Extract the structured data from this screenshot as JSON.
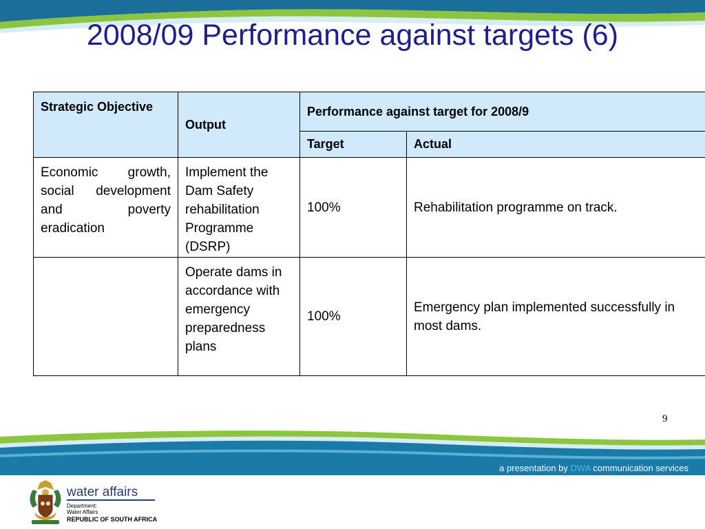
{
  "slide": {
    "title": "2008/09 Performance against targets (6)",
    "page_number": "9"
  },
  "table": {
    "headers": {
      "strategic_objective": "Strategic Objective",
      "output": "Output",
      "performance": "Performance against target for 2008/9",
      "target": "Target",
      "actual": "Actual"
    },
    "rows": [
      {
        "objective": "Economic growth, social development and poverty eradication",
        "output": "Implement the Dam Safety rehabilitation Programme (DSRP)",
        "target": "100%",
        "actual": "Rehabilitation programme on track."
      },
      {
        "objective": "",
        "output": "Operate dams in accordance with emergency preparedness plans",
        "target": "100%",
        "actual": "Emergency plan implemented successfully in most dams."
      }
    ]
  },
  "footer": {
    "presentation_prefix": "a presentation by ",
    "presentation_brand": "DWA",
    "presentation_suffix": " communication services",
    "logo_name": "water affairs",
    "department_line1": "Department:",
    "department_line2": "Water Affairs",
    "country": "REPUBLIC OF SOUTH AFRICA"
  },
  "colors": {
    "title": "#1e1e8c",
    "header_fill": "#d0eafc",
    "wave_blue": "#1a7aa8",
    "wave_green": "#8cc63f"
  }
}
